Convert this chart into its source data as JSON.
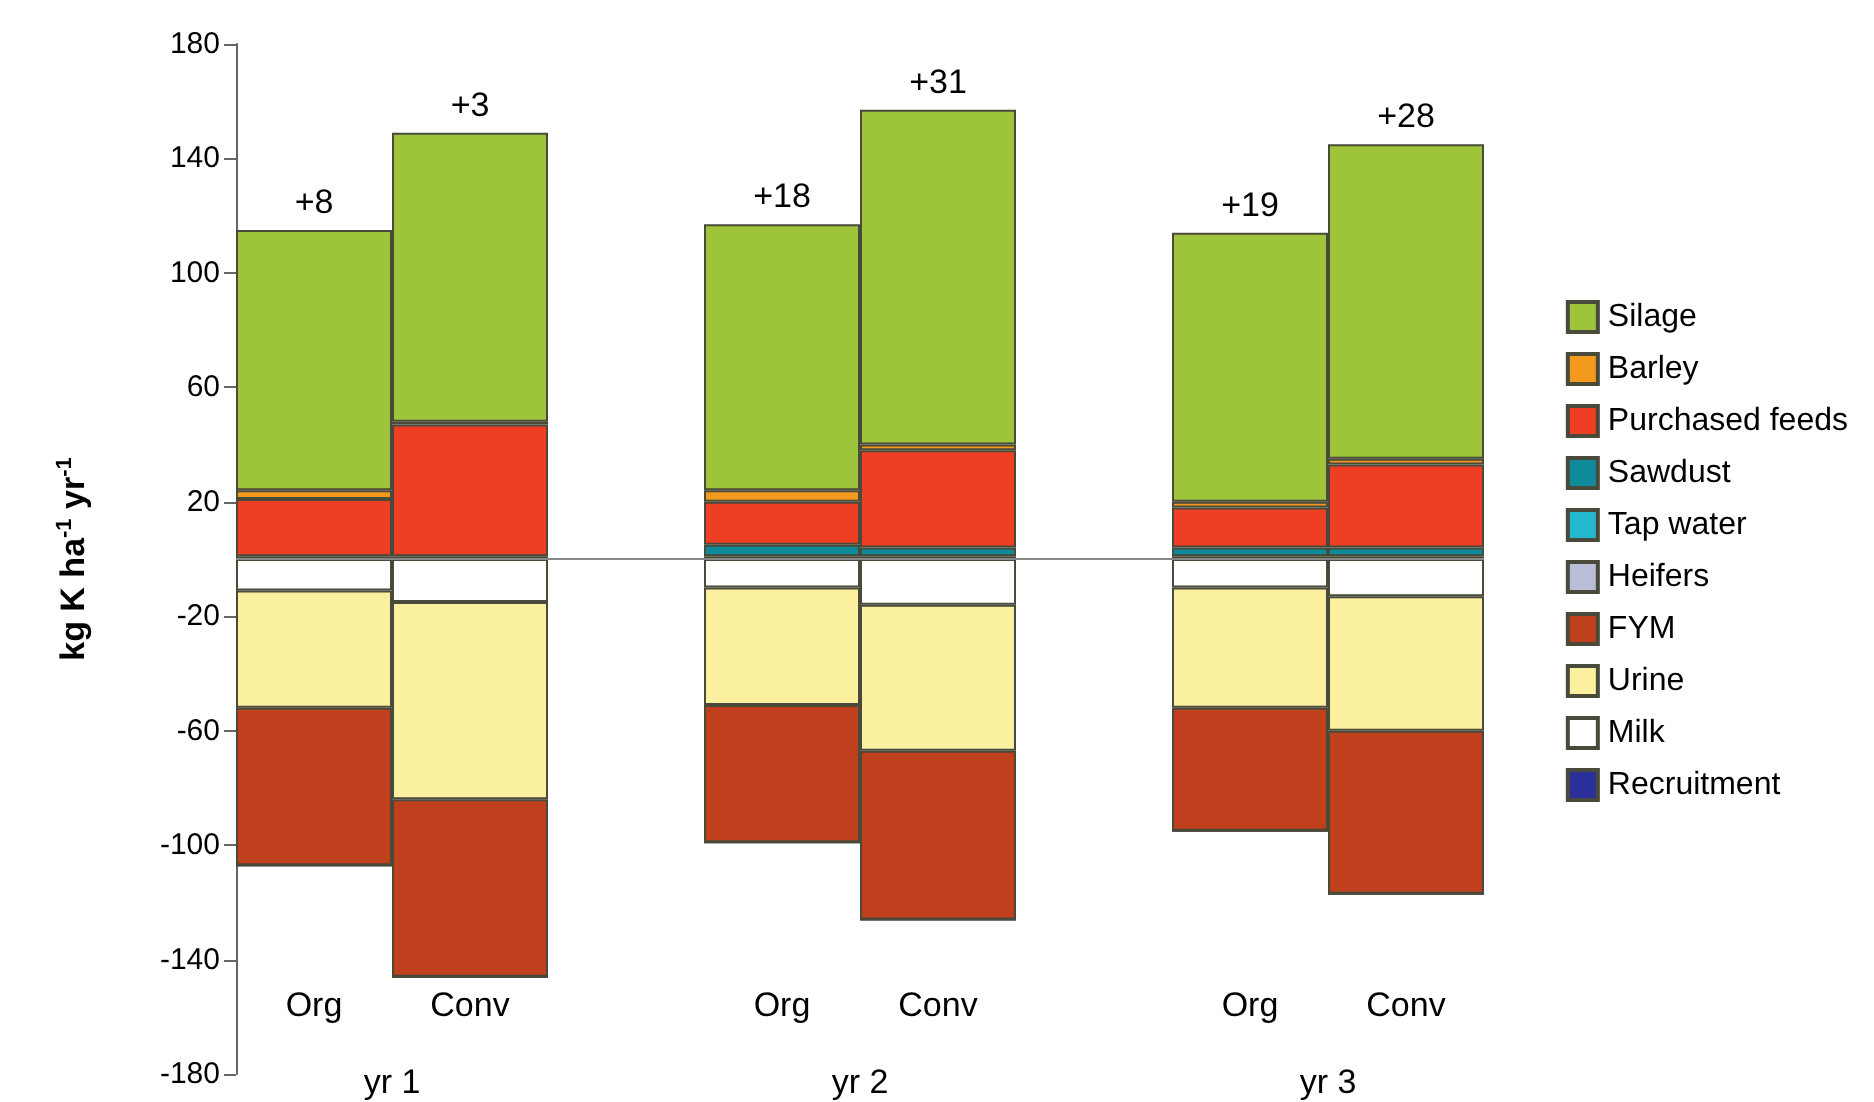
{
  "chart_data": {
    "type": "bar",
    "stacked": true,
    "ylabel": "kg K ha$^{-1}$ yr$^{-1}$",
    "categories": [
      "Org",
      "Conv",
      null,
      "Org",
      "Conv",
      null,
      "Org",
      "Conv"
    ],
    "series": [
      {
        "name": "Recruitment",
        "color": "#2b2f9a",
        "values": [
          1,
          1,
          null,
          1,
          1,
          null,
          1,
          1
        ]
      },
      {
        "name": "Milk",
        "color": "#ffffff",
        "values": [
          -11,
          -15,
          null,
          -10,
          -16,
          null,
          -10,
          -13
        ]
      },
      {
        "name": "Urine",
        "color": "#fbf0a0",
        "values": [
          -41,
          -69,
          null,
          -41,
          -51,
          null,
          -42,
          -47
        ]
      },
      {
        "name": "FYM",
        "color": "#c0401e",
        "values": [
          -55,
          -62,
          null,
          -48,
          -59,
          null,
          -43,
          -57
        ]
      },
      {
        "name": "Heifers",
        "color": "#b9bdd6",
        "values": [
          0,
          0,
          null,
          0,
          0,
          null,
          0,
          0
        ]
      },
      {
        "name": "Tap water",
        "color": "#22b8d0",
        "values": [
          0,
          0,
          null,
          0,
          0,
          null,
          0,
          0
        ]
      },
      {
        "name": "Sawdust",
        "color": "#0f8a9a",
        "values": [
          0,
          0,
          null,
          4,
          3,
          null,
          3,
          3
        ]
      },
      {
        "name": "Purchased feeds",
        "color": "#ee3e23",
        "values": [
          20,
          46,
          null,
          15,
          34,
          null,
          14,
          29
        ]
      },
      {
        "name": "Barley",
        "color": "#f39a1e",
        "values": [
          3,
          1,
          null,
          4,
          2,
          null,
          2,
          2
        ]
      },
      {
        "name": "Silage",
        "color": "#9dc43a",
        "values": [
          91,
          101,
          null,
          93,
          117,
          null,
          94,
          110
        ]
      }
    ],
    "totals": [
      "+8",
      "+3",
      null,
      "+18",
      "+31",
      null,
      "+19",
      "+28"
    ],
    "annotations": [
      "yr 1",
      "yr 2",
      "yr 3"
    ],
    "ref_lines": [
      {
        "axis": "y",
        "value": 0,
        "color": "#888888"
      }
    ],
    "ylim": [
      -180,
      180
    ],
    "yticks": [
      -180,
      -140,
      -100,
      -60,
      -20,
      20,
      60,
      100,
      140,
      180
    ],
    "grid": false,
    "legend": "right"
  }
}
